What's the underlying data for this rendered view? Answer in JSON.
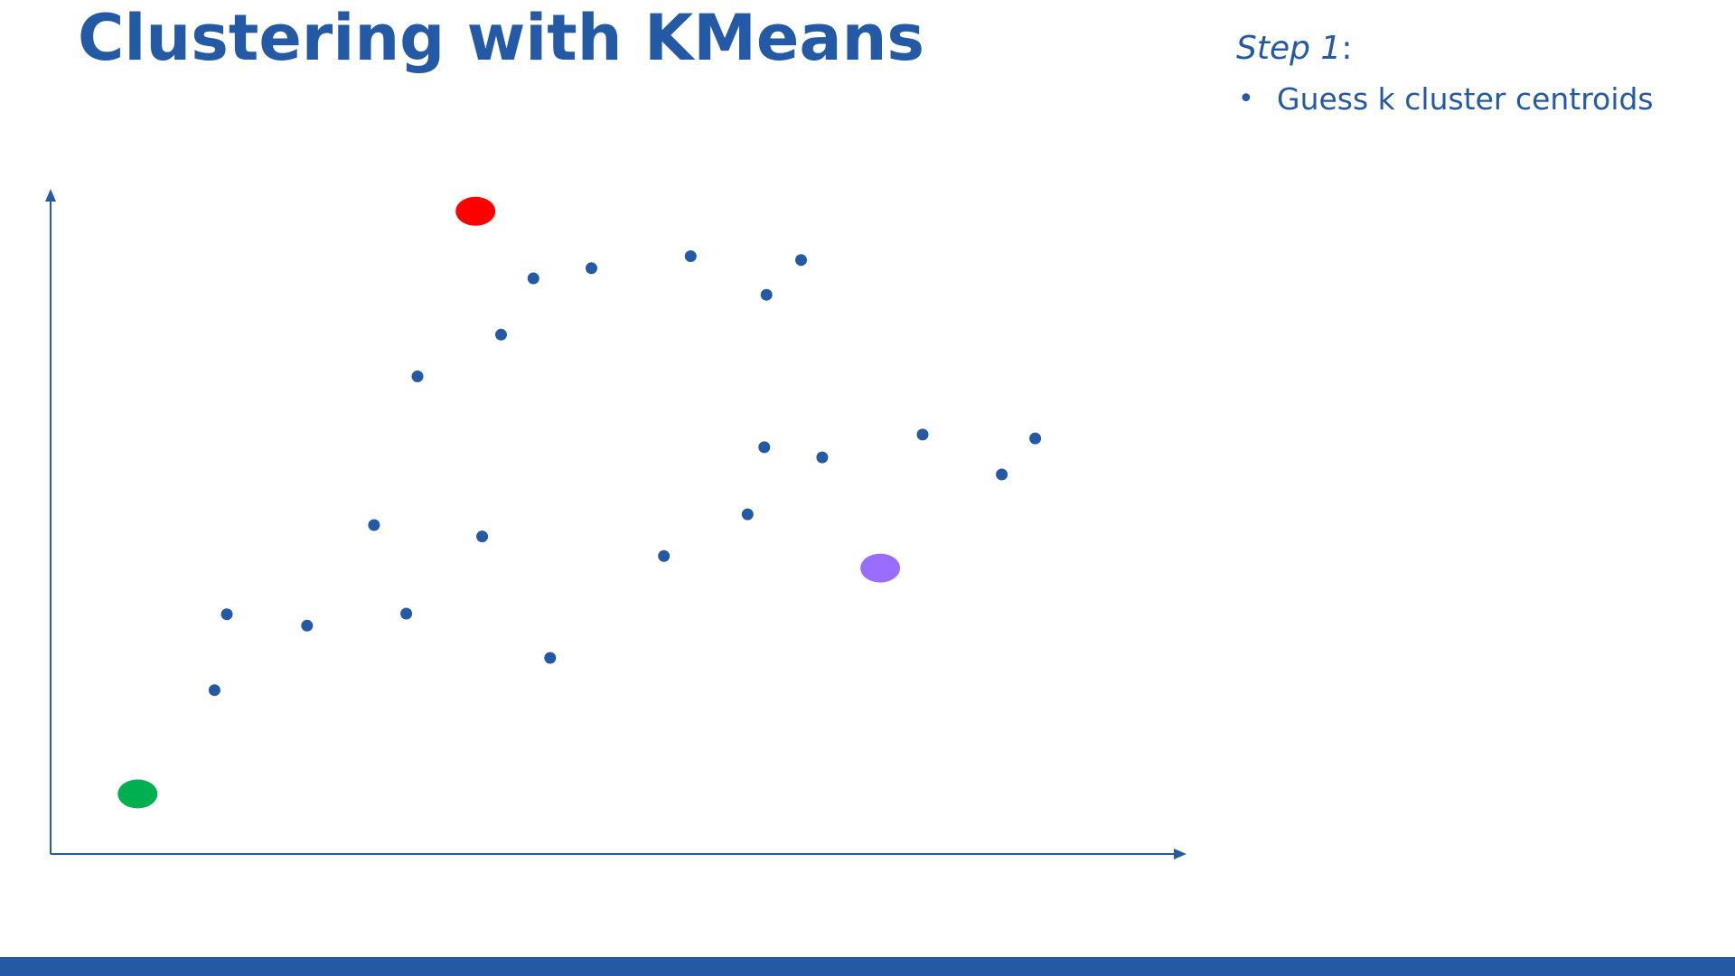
{
  "slide": {
    "title": "Clustering with KMeans",
    "step_label": "Step 1",
    "step_colon": ":",
    "bullets": [
      "Guess k cluster centroids"
    ]
  },
  "colors": {
    "primary": "#2459a6",
    "footer": "#2459a6",
    "axis": "#2459a6",
    "point": "#2459a6"
  },
  "chart_data": {
    "type": "scatter",
    "title": "",
    "xlabel": "",
    "ylabel": "",
    "xlim": [
      0,
      100
    ],
    "ylim": [
      0,
      100
    ],
    "grid": false,
    "legend": "none",
    "series": [
      {
        "color": "#2459a6",
        "points": [
          [
            43.3,
            91.0
          ],
          [
            48.5,
            92.6
          ],
          [
            57.4,
            94.5
          ],
          [
            67.3,
            93.9
          ],
          [
            64.2,
            88.4
          ],
          [
            40.4,
            82.1
          ],
          [
            32.9,
            75.5
          ],
          [
            78.2,
            66.3
          ],
          [
            88.3,
            65.7
          ],
          [
            85.3,
            60.0
          ],
          [
            64.0,
            64.3
          ],
          [
            69.2,
            62.7
          ],
          [
            62.5,
            53.7
          ],
          [
            55.0,
            47.1
          ],
          [
            29.0,
            52.0
          ],
          [
            38.7,
            50.2
          ],
          [
            15.8,
            37.9
          ],
          [
            23.0,
            36.1
          ],
          [
            31.9,
            38.0
          ],
          [
            44.8,
            31.0
          ],
          [
            14.7,
            25.9
          ]
        ]
      },
      {
        "role": "centroids",
        "points": [
          {
            "x": 38.1,
            "y": 101.6,
            "color": "#ff0000"
          },
          {
            "x": 74.4,
            "y": 45.2,
            "color": "#9a6cff"
          },
          {
            "x": 7.8,
            "y": 9.5,
            "color": "#00b050"
          }
        ]
      }
    ]
  }
}
